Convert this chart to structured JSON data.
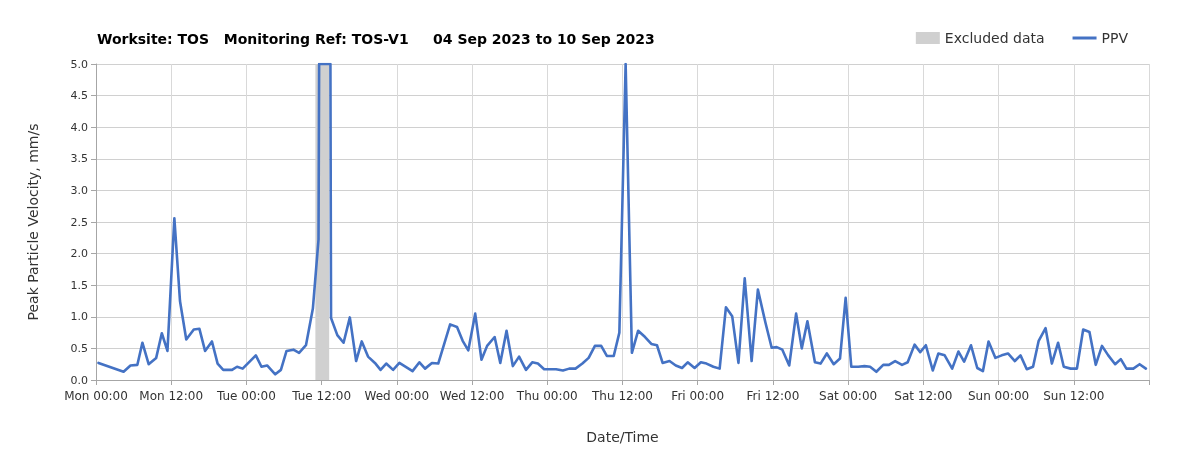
{
  "chart_data": {
    "type": "line",
    "title": "Worksite: TOS   Monitoring Ref: TOS-V1     04 Sep 2023 to 10 Sep 2023",
    "xlabel": "Date/Time",
    "ylabel": "Peak Particle Velocity, mm/s",
    "series": [
      {
        "name": "PPV",
        "color": "#4472c4",
        "x": [
          "2023-09-04T00:24",
          "2023-09-04T04:24",
          "2023-09-04T05:30",
          "2023-09-04T06:36",
          "2023-09-04T07:24",
          "2023-09-04T08:24",
          "2023-09-04T09:36",
          "2023-09-04T10:30",
          "2023-09-04T11:24",
          "2023-09-04T12:30",
          "2023-09-04T13:24",
          "2023-09-04T14:24",
          "2023-09-04T15:36",
          "2023-09-04T16:30",
          "2023-09-04T17:24",
          "2023-09-04T18:30",
          "2023-09-04T19:24",
          "2023-09-04T20:18",
          "2023-09-04T21:42",
          "2023-09-04T22:30",
          "2023-09-04T23:24",
          "2023-09-05T01:30",
          "2023-09-05T02:24",
          "2023-09-05T03:18",
          "2023-09-05T04:36",
          "2023-09-05T05:30",
          "2023-09-05T06:24",
          "2023-09-05T07:30",
          "2023-09-05T08:24",
          "2023-09-05T09:30",
          "2023-09-05T10:36",
          "2023-09-05T11:30",
          "2023-09-05T11:36",
          "2023-09-05T13:24",
          "2023-09-05T13:30",
          "2023-09-05T14:30",
          "2023-09-05T15:30",
          "2023-09-05T16:30",
          "2023-09-05T17:30",
          "2023-09-05T18:24",
          "2023-09-05T19:24",
          "2023-09-05T20:30",
          "2023-09-05T21:24",
          "2023-09-05T22:18",
          "2023-09-05T23:24",
          "2023-09-06T00:24",
          "2023-09-06T02:30",
          "2023-09-06T03:36",
          "2023-09-06T04:30",
          "2023-09-06T05:36",
          "2023-09-06T06:36",
          "2023-09-06T08:30",
          "2023-09-06T09:36",
          "2023-09-06T10:30",
          "2023-09-06T11:24",
          "2023-09-06T12:30",
          "2023-09-06T13:30",
          "2023-09-06T14:24",
          "2023-09-06T15:36",
          "2023-09-06T16:30",
          "2023-09-06T17:30",
          "2023-09-06T18:30",
          "2023-09-06T19:30",
          "2023-09-06T20:36",
          "2023-09-06T21:36",
          "2023-09-06T22:30",
          "2023-09-06T23:30",
          "2023-09-07T01:24",
          "2023-09-07T02:30",
          "2023-09-07T03:30",
          "2023-09-07T04:30",
          "2023-09-07T05:36",
          "2023-09-07T06:36",
          "2023-09-07T07:36",
          "2023-09-07T08:36",
          "2023-09-07T09:30",
          "2023-09-07T10:36",
          "2023-09-07T11:30",
          "2023-09-07T12:30",
          "2023-09-07T13:30",
          "2023-09-07T14:30",
          "2023-09-07T15:36",
          "2023-09-07T16:36",
          "2023-09-07T17:30",
          "2023-09-07T18:24",
          "2023-09-07T19:30",
          "2023-09-07T20:30",
          "2023-09-07T21:30",
          "2023-09-07T22:24",
          "2023-09-07T23:30",
          "2023-09-08T00:30",
          "2023-09-08T01:24",
          "2023-09-08T02:30",
          "2023-09-08T03:30",
          "2023-09-08T04:30",
          "2023-09-08T05:30",
          "2023-09-08T06:30",
          "2023-09-08T07:30",
          "2023-09-08T08:36",
          "2023-09-08T09:36",
          "2023-09-08T10:48",
          "2023-09-08T11:48",
          "2023-09-08T12:36",
          "2023-09-08T13:30",
          "2023-09-08T14:36",
          "2023-09-08T15:42",
          "2023-09-08T16:36",
          "2023-09-08T17:30",
          "2023-09-08T18:42",
          "2023-09-08T19:36",
          "2023-09-08T20:36",
          "2023-09-08T21:42",
          "2023-09-08T22:42",
          "2023-09-08T23:36",
          "2023-09-09T00:30",
          "2023-09-09T01:36",
          "2023-09-09T02:36",
          "2023-09-09T03:30",
          "2023-09-09T04:30",
          "2023-09-09T05:36",
          "2023-09-09T06:30",
          "2023-09-09T07:30",
          "2023-09-09T08:36",
          "2023-09-09T09:30",
          "2023-09-09T10:36",
          "2023-09-09T11:30",
          "2023-09-09T12:24",
          "2023-09-09T13:30",
          "2023-09-09T14:24",
          "2023-09-09T15:24",
          "2023-09-09T16:36",
          "2023-09-09T17:36",
          "2023-09-09T18:30",
          "2023-09-09T19:36",
          "2023-09-09T20:36",
          "2023-09-09T21:30",
          "2023-09-09T22:24",
          "2023-09-09T23:30",
          "2023-09-10T00:30",
          "2023-09-10T01:30",
          "2023-09-10T02:36",
          "2023-09-10T03:30",
          "2023-09-10T04:30",
          "2023-09-10T05:30",
          "2023-09-10T06:24",
          "2023-09-10T07:30",
          "2023-09-10T08:30",
          "2023-09-10T09:30",
          "2023-09-10T10:24",
          "2023-09-10T11:30",
          "2023-09-10T12:30",
          "2023-09-10T13:30",
          "2023-09-10T14:30",
          "2023-09-10T15:30",
          "2023-09-10T16:30",
          "2023-09-10T17:30",
          "2023-09-10T18:36",
          "2023-09-10T19:30",
          "2023-09-10T20:24",
          "2023-09-10T21:30",
          "2023-09-10T22:30",
          "2023-09-10T23:30"
        ],
        "values": [
          0.27,
          0.13,
          0.23,
          0.24,
          0.59,
          0.25,
          0.35,
          0.74,
          0.46,
          2.56,
          1.25,
          0.64,
          0.8,
          0.81,
          0.46,
          0.61,
          0.26,
          0.16,
          0.16,
          0.21,
          0.18,
          0.39,
          0.21,
          0.23,
          0.09,
          0.16,
          0.46,
          0.48,
          0.43,
          0.55,
          1.13,
          2.22,
          5.0,
          5.0,
          0.98,
          0.71,
          0.59,
          0.99,
          0.3,
          0.61,
          0.37,
          0.27,
          0.16,
          0.26,
          0.16,
          0.27,
          0.14,
          0.28,
          0.18,
          0.27,
          0.26,
          0.88,
          0.84,
          0.62,
          0.47,
          1.05,
          0.32,
          0.54,
          0.68,
          0.27,
          0.78,
          0.22,
          0.37,
          0.16,
          0.28,
          0.26,
          0.17,
          0.17,
          0.15,
          0.18,
          0.18,
          0.26,
          0.35,
          0.54,
          0.54,
          0.38,
          0.38,
          0.75,
          5.0,
          0.43,
          0.78,
          0.68,
          0.57,
          0.55,
          0.27,
          0.3,
          0.23,
          0.19,
          0.28,
          0.19,
          0.28,
          0.26,
          0.21,
          0.18,
          1.15,
          1.01,
          0.27,
          1.61,
          0.3,
          1.43,
          0.91,
          0.51,
          0.52,
          0.48,
          0.23,
          1.05,
          0.5,
          0.93,
          0.28,
          0.26,
          0.42,
          0.25,
          0.34,
          1.3,
          0.21,
          0.21,
          0.22,
          0.21,
          0.13,
          0.24,
          0.24,
          0.3,
          0.24,
          0.28,
          0.56,
          0.44,
          0.55,
          0.15,
          0.42,
          0.39,
          0.18,
          0.45,
          0.29,
          0.55,
          0.19,
          0.14,
          0.61,
          0.35,
          0.39,
          0.42,
          0.3,
          0.39,
          0.17,
          0.21,
          0.62,
          0.82,
          0.26,
          0.59,
          0.21,
          0.18,
          0.18,
          0.8,
          0.76,
          0.24,
          0.54,
          0.39,
          0.25,
          0.33,
          0.18,
          0.18,
          0.25,
          0.18
        ]
      }
    ],
    "bands": [
      {
        "axis": "x",
        "from": "2023-09-05T11:00",
        "to": "2023-09-05T13:12",
        "label": "Excluded data",
        "color": "#d0d0d0"
      }
    ],
    "xlim": [
      "2023-09-04T00:00",
      "2023-09-11T00:00"
    ],
    "xticks": [
      {
        "value": "2023-09-04T00:00",
        "label": "Mon 00:00"
      },
      {
        "value": "2023-09-04T12:00",
        "label": "Mon 12:00"
      },
      {
        "value": "2023-09-05T00:00",
        "label": "Tue 00:00"
      },
      {
        "value": "2023-09-05T12:00",
        "label": "Tue 12:00"
      },
      {
        "value": "2023-09-06T00:00",
        "label": "Wed 00:00"
      },
      {
        "value": "2023-09-06T12:00",
        "label": "Wed 12:00"
      },
      {
        "value": "2023-09-07T00:00",
        "label": "Thu 00:00"
      },
      {
        "value": "2023-09-07T12:00",
        "label": "Thu 12:00"
      },
      {
        "value": "2023-09-08T00:00",
        "label": "Fri 00:00"
      },
      {
        "value": "2023-09-08T12:00",
        "label": "Fri 12:00"
      },
      {
        "value": "2023-09-09T00:00",
        "label": "Sat 00:00"
      },
      {
        "value": "2023-09-09T12:00",
        "label": "Sat 12:00"
      },
      {
        "value": "2023-09-10T00:00",
        "label": "Sun 00:00"
      },
      {
        "value": "2023-09-10T12:00",
        "label": "Sun 12:00"
      },
      {
        "value": "2023-09-11T00:00",
        "label": null
      }
    ],
    "ylim": [
      0,
      5
    ],
    "yticks": [
      {
        "value": 0,
        "label": "0.0"
      },
      {
        "value": 0.5,
        "label": "0.5"
      },
      {
        "value": 1,
        "label": "1.0"
      },
      {
        "value": 1.5,
        "label": "1.5"
      },
      {
        "value": 2,
        "label": "2.0"
      },
      {
        "value": 2.5,
        "label": "2.5"
      },
      {
        "value": 3,
        "label": "3.0"
      },
      {
        "value": 3.5,
        "label": "3.5"
      },
      {
        "value": 4,
        "label": "4.0"
      },
      {
        "value": 4.5,
        "label": "4.5"
      },
      {
        "value": 5,
        "label": "5.0"
      }
    ],
    "grid": true,
    "legend": "top right",
    "marker": "none",
    "line_style": "solid"
  }
}
